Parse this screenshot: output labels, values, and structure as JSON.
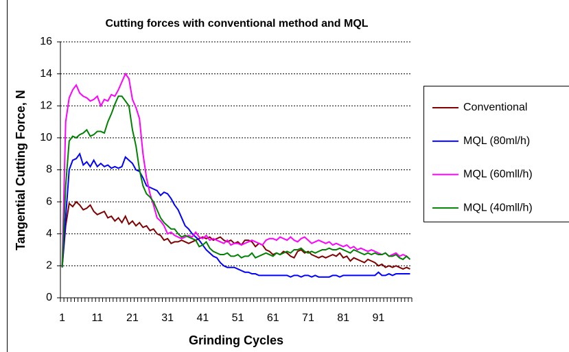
{
  "chart_data": {
    "type": "line",
    "title": "Cutting forces with conventional method and MQL",
    "x_label": "Grinding Cycles",
    "y_label": "Tangential Cutting Force, N",
    "categories": [
      1,
      null,
      null,
      null,
      null,
      null,
      null,
      null,
      null,
      null,
      11,
      null,
      null,
      null,
      null,
      null,
      null,
      null,
      null,
      null,
      21,
      null,
      null,
      null,
      null,
      null,
      null,
      null,
      null,
      null,
      31,
      null,
      null,
      null,
      null,
      null,
      null,
      null,
      null,
      null,
      41,
      null,
      null,
      null,
      null,
      null,
      null,
      null,
      null,
      null,
      51,
      null,
      null,
      null,
      null,
      null,
      null,
      null,
      null,
      null,
      61,
      null,
      null,
      null,
      null,
      null,
      null,
      null,
      null,
      null,
      71,
      null,
      null,
      null,
      null,
      null,
      null,
      null,
      null,
      null,
      81,
      null,
      null,
      null,
      null,
      null,
      null,
      null,
      null,
      null,
      91,
      null,
      null,
      null,
      null,
      null,
      null,
      null,
      null,
      null
    ],
    "ylim": [
      0,
      16
    ],
    "yticks": [
      0,
      2,
      4,
      6,
      8,
      10,
      12,
      14,
      16
    ],
    "grid": true,
    "legend": "right",
    "series": [
      {
        "name": "Conventional",
        "color": "#800000",
        "values": [
          1.9,
          4.5,
          5.9,
          5.7,
          6.0,
          5.8,
          5.5,
          5.6,
          5.8,
          5.4,
          5.2,
          5.3,
          5.4,
          5.0,
          5.1,
          4.8,
          5.0,
          4.7,
          5.1,
          4.6,
          4.8,
          4.5,
          4.7,
          4.4,
          4.5,
          4.2,
          4.3,
          4.0,
          3.9,
          3.6,
          3.7,
          3.4,
          3.5,
          3.5,
          3.6,
          3.5,
          3.4,
          3.5,
          3.6,
          3.7,
          3.8,
          3.7,
          3.8,
          3.6,
          3.7,
          3.8,
          3.6,
          3.5,
          3.6,
          3.4,
          3.5,
          3.3,
          3.6,
          3.6,
          3.5,
          3.2,
          3.4,
          3.3,
          3.0,
          2.9,
          2.7,
          2.8,
          2.7,
          2.9,
          2.8,
          2.6,
          2.5,
          2.9,
          3.0,
          2.8,
          2.9,
          2.7,
          2.6,
          2.5,
          2.6,
          2.5,
          2.6,
          2.7,
          2.6,
          2.8,
          2.5,
          2.6,
          2.3,
          2.5,
          2.4,
          2.3,
          2.2,
          2.4,
          2.3,
          2.2,
          2.0,
          2.1,
          1.9,
          2.0,
          1.9,
          2.0,
          1.9,
          1.8,
          1.9,
          1.8
        ]
      },
      {
        "name": "MQL (80ml/h)",
        "color": "#0000ff",
        "values": [
          1.9,
          5.0,
          8.0,
          8.6,
          8.7,
          9.0,
          8.3,
          8.5,
          8.2,
          8.6,
          8.2,
          8.4,
          8.2,
          8.3,
          8.1,
          8.2,
          8.1,
          8.2,
          8.8,
          8.6,
          8.4,
          8.0,
          7.9,
          7.5,
          7.0,
          6.9,
          6.8,
          6.7,
          6.4,
          6.6,
          6.5,
          6.2,
          5.8,
          5.5,
          5.0,
          4.5,
          4.3,
          4.0,
          3.8,
          3.6,
          3.3,
          3.0,
          2.8,
          2.6,
          2.5,
          2.2,
          2.0,
          1.9,
          1.9,
          1.9,
          1.8,
          1.7,
          1.6,
          1.6,
          1.5,
          1.5,
          1.4,
          1.4,
          1.4,
          1.4,
          1.4,
          1.4,
          1.4,
          1.4,
          1.4,
          1.3,
          1.4,
          1.4,
          1.3,
          1.4,
          1.4,
          1.3,
          1.4,
          1.3,
          1.3,
          1.3,
          1.3,
          1.4,
          1.4,
          1.3,
          1.4,
          1.4,
          1.4,
          1.4,
          1.4,
          1.4,
          1.4,
          1.4,
          1.4,
          1.4,
          1.6,
          1.4,
          1.4,
          1.5,
          1.4,
          1.5,
          1.5,
          1.5,
          1.5,
          1.5
        ]
      },
      {
        "name": "MQL (60mll/h)",
        "color": "#ff00ff",
        "values": [
          1.9,
          11.0,
          12.5,
          13.0,
          13.3,
          12.8,
          12.6,
          12.5,
          12.3,
          12.4,
          12.6,
          12.0,
          12.4,
          12.3,
          12.7,
          12.6,
          13.0,
          13.5,
          14.0,
          13.7,
          12.4,
          11.9,
          11.2,
          9.0,
          7.5,
          6.5,
          5.8,
          5.0,
          4.8,
          4.5,
          4.0,
          4.1,
          3.9,
          3.8,
          3.7,
          3.8,
          3.9,
          3.8,
          4.1,
          3.8,
          3.7,
          3.9,
          3.6,
          3.7,
          3.6,
          3.5,
          3.4,
          3.6,
          3.3,
          3.4,
          3.4,
          3.3,
          3.4,
          3.5,
          3.6,
          3.5,
          3.4,
          3.3,
          3.6,
          3.7,
          3.7,
          3.6,
          3.8,
          3.7,
          3.6,
          3.8,
          3.6,
          3.5,
          3.7,
          3.8,
          3.6,
          3.4,
          3.5,
          3.6,
          3.5,
          3.4,
          3.5,
          3.3,
          3.4,
          3.3,
          3.2,
          3.3,
          3.1,
          3.2,
          3.0,
          3.1,
          3.0,
          2.9,
          3.0,
          2.9,
          2.8,
          2.7,
          2.8,
          2.6,
          2.7,
          2.8,
          2.6,
          2.7,
          2.6,
          2.4
        ]
      },
      {
        "name": "MQL (40mll/h)",
        "color": "#008000",
        "values": [
          1.9,
          7.0,
          9.8,
          10.1,
          10.0,
          10.2,
          10.3,
          10.5,
          10.1,
          10.2,
          10.4,
          10.4,
          10.3,
          11.0,
          11.5,
          12.1,
          12.6,
          12.6,
          12.3,
          12.0,
          10.5,
          9.5,
          8.0,
          7.0,
          6.5,
          6.3,
          6.0,
          5.5,
          5.0,
          4.7,
          4.5,
          4.3,
          4.3,
          4.0,
          3.8,
          3.9,
          3.8,
          3.7,
          3.6,
          3.2,
          3.3,
          3.5,
          3.1,
          2.9,
          2.8,
          2.7,
          2.7,
          2.8,
          2.6,
          2.6,
          2.7,
          2.5,
          2.6,
          2.6,
          2.8,
          2.5,
          2.6,
          2.7,
          2.8,
          2.7,
          2.6,
          2.8,
          2.7,
          2.8,
          2.9,
          2.8,
          3.0,
          3.0,
          3.1,
          2.9,
          2.8,
          2.9,
          2.8,
          2.9,
          3.0,
          3.0,
          3.1,
          3.0,
          3.0,
          3.1,
          3.0,
          2.9,
          2.8,
          3.0,
          2.9,
          2.8,
          2.7,
          2.8,
          2.7,
          2.8,
          2.7,
          2.7,
          2.8,
          2.6,
          2.6,
          2.7,
          2.5,
          2.4,
          2.6,
          2.4
        ]
      }
    ]
  }
}
